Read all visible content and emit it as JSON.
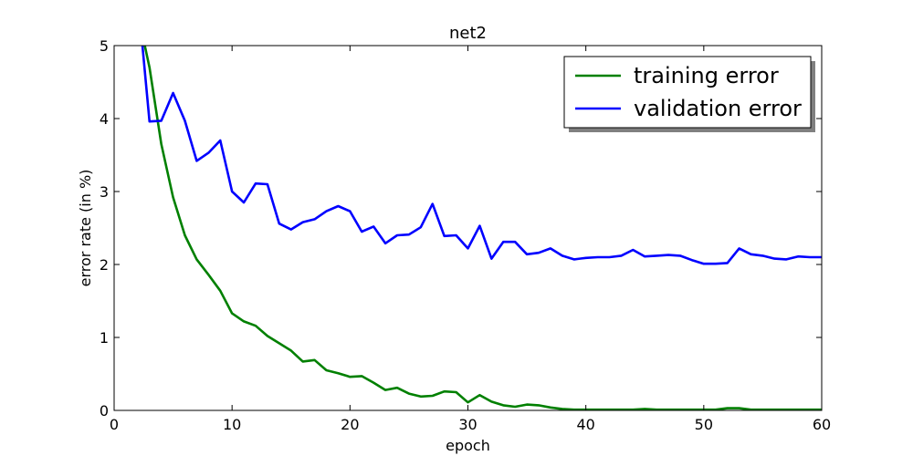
{
  "chart_data": {
    "type": "line",
    "title": "net2",
    "xlabel": "epoch",
    "ylabel": "error rate (in %)",
    "xlim": [
      0,
      60
    ],
    "ylim": [
      0,
      5
    ],
    "xticks": [
      "0",
      "10",
      "20",
      "30",
      "40",
      "50",
      "60"
    ],
    "yticks": [
      "0",
      "1",
      "2",
      "3",
      "4",
      "5"
    ],
    "grid": false,
    "legend_position": "top-right",
    "series": [
      {
        "name": "training error",
        "color": "#008000",
        "x": [
          2.6,
          3,
          4,
          5,
          6,
          7,
          8,
          9,
          10,
          11,
          12,
          13,
          14,
          15,
          16,
          17,
          18,
          19,
          20,
          21,
          22,
          23,
          24,
          25,
          26,
          27,
          28,
          29,
          30,
          31,
          32,
          33,
          34,
          35,
          36,
          37,
          38,
          39,
          40,
          41,
          42,
          43,
          44,
          45,
          46,
          47,
          48,
          49,
          50,
          51,
          52,
          53,
          54,
          55,
          56,
          57,
          58,
          59,
          60
        ],
        "values": [
          5.0,
          4.7,
          3.65,
          2.92,
          2.4,
          2.07,
          1.86,
          1.64,
          1.33,
          1.22,
          1.16,
          1.02,
          0.92,
          0.82,
          0.67,
          0.69,
          0.55,
          0.51,
          0.46,
          0.47,
          0.38,
          0.28,
          0.31,
          0.23,
          0.19,
          0.2,
          0.26,
          0.25,
          0.11,
          0.21,
          0.12,
          0.07,
          0.05,
          0.08,
          0.07,
          0.04,
          0.02,
          0.01,
          0.01,
          0.01,
          0.01,
          0.01,
          0.01,
          0.02,
          0.01,
          0.01,
          0.01,
          0.01,
          0.01,
          0.01,
          0.03,
          0.03,
          0.01,
          0.01,
          0.01,
          0.01,
          0.01,
          0.01,
          0.01
        ]
      },
      {
        "name": "validation error",
        "color": "#0000ff",
        "x": [
          2.4,
          3,
          4,
          5,
          6,
          7,
          8,
          9,
          10,
          11,
          12,
          13,
          14,
          15,
          16,
          17,
          18,
          19,
          20,
          21,
          22,
          23,
          24,
          25,
          26,
          27,
          28,
          29,
          30,
          31,
          32,
          33,
          34,
          35,
          36,
          37,
          38,
          39,
          40,
          41,
          42,
          43,
          44,
          45,
          46,
          47,
          48,
          49,
          50,
          51,
          52,
          53,
          54,
          55,
          56,
          57,
          58,
          59,
          60
        ],
        "values": [
          5.0,
          3.96,
          3.97,
          4.35,
          3.97,
          3.42,
          3.53,
          3.7,
          3.0,
          2.85,
          3.11,
          3.1,
          2.56,
          2.48,
          2.58,
          2.62,
          2.73,
          2.8,
          2.73,
          2.45,
          2.52,
          2.29,
          2.4,
          2.41,
          2.51,
          2.83,
          2.39,
          2.4,
          2.22,
          2.53,
          2.08,
          2.31,
          2.31,
          2.14,
          2.16,
          2.22,
          2.12,
          2.07,
          2.09,
          2.1,
          2.1,
          2.12,
          2.2,
          2.11,
          2.12,
          2.13,
          2.12,
          2.06,
          2.01,
          2.01,
          2.02,
          2.22,
          2.14,
          2.12,
          2.08,
          2.07,
          2.11,
          2.1,
          2.1
        ]
      }
    ]
  }
}
